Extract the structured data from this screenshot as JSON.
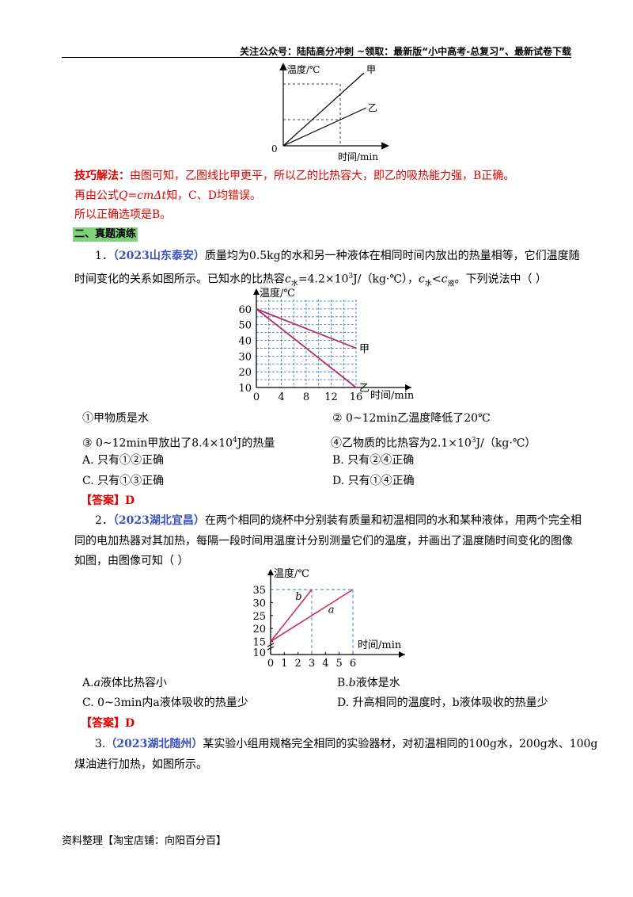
{
  "header": {
    "text": "关注公众号：陆陆高分冲刺   ~领取：最新版“小中高考-总复习”、最新试卷下载"
  },
  "fig0": {
    "ylabel": "温度/℃",
    "xlabel": "时间/min",
    "origin": "0",
    "s1": "甲",
    "s2": "乙"
  },
  "technique": {
    "label": "技巧解法：",
    "line1": "由图可知，乙图线比甲更平，所以乙的比热容大，即乙的吸热能力强，B正确。",
    "line2_a": "再由公式",
    "line2_formula": "Q=cmΔt",
    "line2_b": "知，C、D均错误。",
    "line3": "所以正确选项是B。"
  },
  "section": {
    "title": "二、真题演练"
  },
  "q1": {
    "num": "1．",
    "source": "（2023山东泰安）",
    "text_a": "质量均为0.5kg的水和另一种液体在相同时间内放出的热量相等，它们温度随",
    "text_b1": "时间变化的关系如图所示。已知水的比热容",
    "c": "c",
    "sub_water": "水",
    "text_b2": "=4.2×10",
    "sup3": "3",
    "text_b3": "J/（kg·℃），",
    "lt": "<",
    "sub_liquid": "液",
    "text_b4": "。下列说法中（      ）",
    "chart": {
      "ylabel": "温度/℃",
      "xlabel": "时间/min",
      "s1": "甲",
      "s2": "乙"
    },
    "s1": "①甲物质是水",
    "s2": "② 0~12min乙温度降低了20℃",
    "s3_a": "③ 0~12min甲放出了8.4×10",
    "s3_sup": "4",
    "s3_b": "J的热量",
    "s4_a": "④乙物质的比热容为2.1×10",
    "s4_sup": "3",
    "s4_b": "J/（kg·℃）",
    "optA": "A. 只有①②正确",
    "optB": "B. 只有②④正确",
    "optC": "C. 只有①③正确",
    "optD": "D. 只有①④正确",
    "answer_label": "【答案】",
    "answer": "D"
  },
  "q2": {
    "num": "2．",
    "source": "（2023湖北宜昌）",
    "line1": "在两个相同的烧杯中分别装有质量和初温相同的水和某种液体，用两个完全相",
    "line2": "同的电加热器对其加热，每隔一段时间用温度计分别测量它们的温度，并画出了温度随时间变化的图像",
    "line3": "如图，由图像可知（      ）",
    "chart": {
      "ylabel": "温度/℃",
      "xlabel": "时间/min",
      "a": "a",
      "b": "b"
    },
    "optA_a": "A.",
    "optA_i": "a",
    "optA_b": "液体比热容小",
    "optB_a": "B.",
    "optB_i": "b",
    "optB_b": "液体是水",
    "optC": "C. 0~3min内a液体吸收的热量少",
    "optD": "D. 升高相同的温度时，b液体吸收的热量少",
    "answer_label": "【答案】",
    "answer": "D"
  },
  "q3": {
    "num": "3.",
    "source": "（2023湖北随州）",
    "line1": "某实验小组用规格完全相同的实验器材，对初温相同的100g水，200g水、100g",
    "line2": "煤油进行加热，如图所示。"
  },
  "footer": {
    "text": "资料整理【淘宝店铺：向阳百分百】"
  },
  "chart_data": [
    {
      "type": "line",
      "xlabel": "时间/min",
      "ylabel": "温度/℃",
      "xticks": [
        0,
        4,
        8,
        12,
        16
      ],
      "yticks": [
        10,
        20,
        30,
        40,
        50,
        60
      ],
      "xlim": [
        0,
        16
      ],
      "ylim": [
        10,
        60
      ],
      "grid": true,
      "series": [
        {
          "name": "甲",
          "x": [
            0,
            16
          ],
          "y": [
            60,
            35
          ]
        },
        {
          "name": "乙",
          "x": [
            0,
            16
          ],
          "y": [
            60,
            10
          ]
        }
      ]
    },
    {
      "type": "line",
      "xlabel": "时间/min",
      "ylabel": "温度/℃",
      "xticks": [
        0,
        1,
        2,
        3,
        4,
        5,
        6
      ],
      "yticks": [
        15,
        20,
        25,
        30,
        35
      ],
      "xlim": [
        0,
        6
      ],
      "ylim": [
        15,
        35
      ],
      "grid": false,
      "series": [
        {
          "name": "a",
          "x": [
            0,
            6
          ],
          "y": [
            15,
            35
          ]
        },
        {
          "name": "b",
          "x": [
            0,
            3
          ],
          "y": [
            15,
            35
          ]
        }
      ]
    }
  ]
}
